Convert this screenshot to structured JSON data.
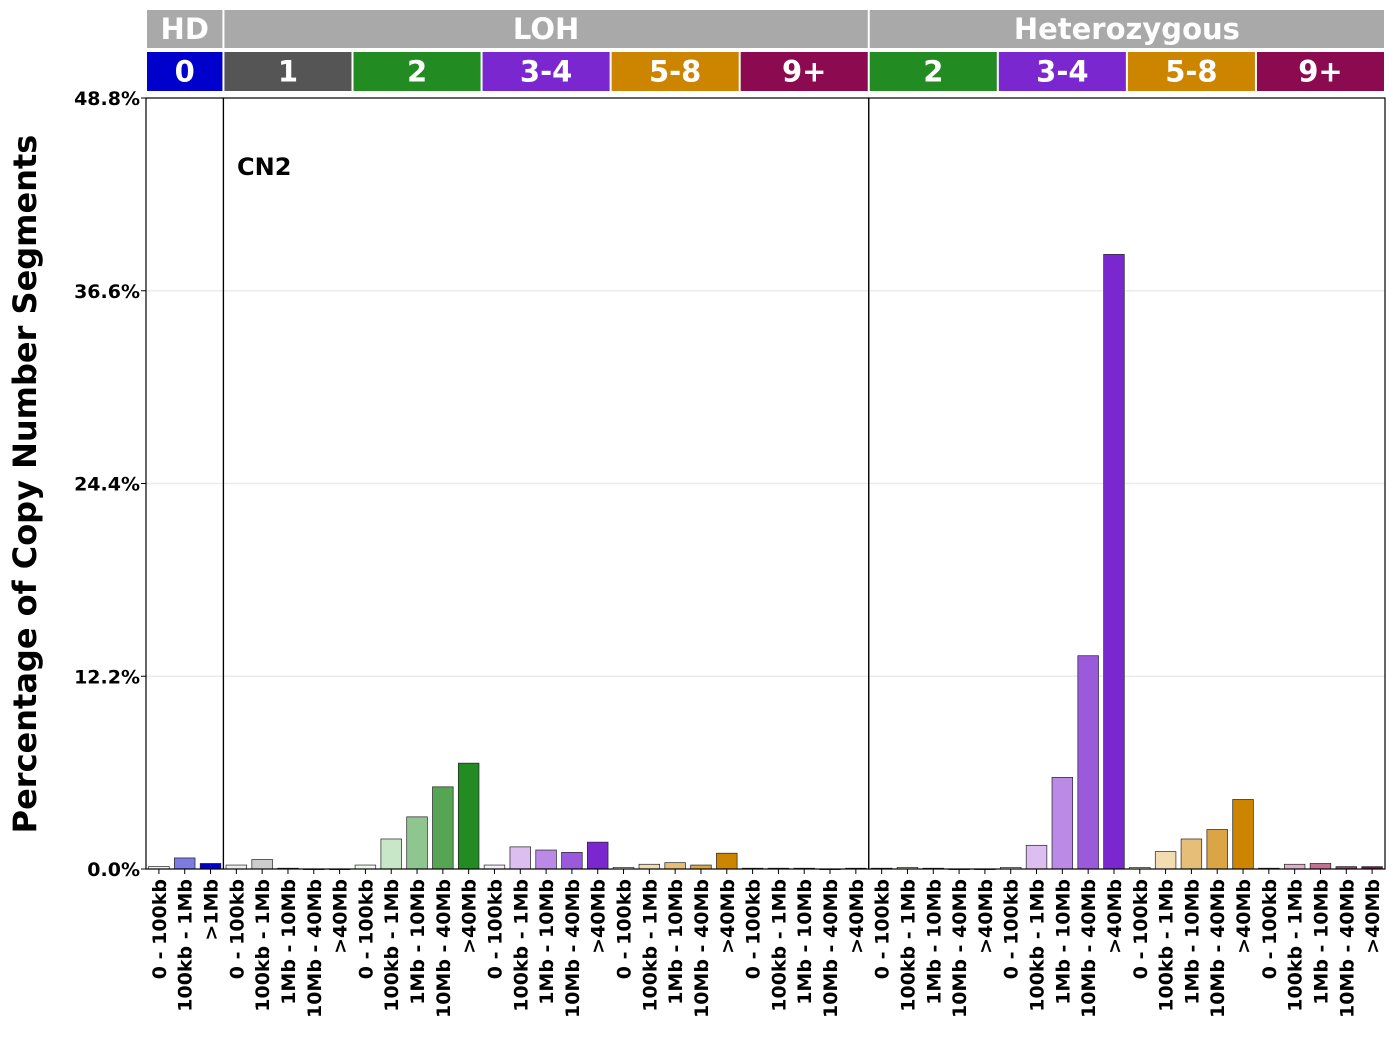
{
  "chart_data": {
    "type": "bar",
    "ylabel": "Percentage of Copy Number Segments",
    "ylim": [
      0,
      48.8
    ],
    "yticks": [
      "0.0%",
      "12.2%",
      "24.4%",
      "36.6%",
      "48.8%"
    ],
    "ytick_values": [
      0,
      12.2,
      24.4,
      36.6,
      48.8
    ],
    "grid": "horizontal",
    "annotation": "CN2",
    "panels": [
      {
        "label": "HD",
        "groups": [
          "0"
        ]
      },
      {
        "label": "LOH",
        "groups": [
          "1",
          "2",
          "3-4",
          "5-8",
          "9+"
        ]
      },
      {
        "label": "Heterozygous",
        "groups": [
          "2",
          "3-4",
          "5-8",
          "9+"
        ]
      }
    ],
    "groups": [
      {
        "panel": 0,
        "label": "0",
        "color": "#0000CD",
        "categories": [
          "0 - 100kb",
          "100kb - 1Mb",
          ">1Mb"
        ],
        "values": [
          0.15,
          0.7,
          0.35
        ],
        "colors": [
          "#F0F0F0",
          "#7B7BE0",
          "#0000CD"
        ]
      },
      {
        "panel": 1,
        "label": "1",
        "color": "#555555",
        "categories": [
          "0 - 100kb",
          "100kb - 1Mb",
          "1Mb - 10Mb",
          "10Mb - 40Mb",
          ">40Mb"
        ],
        "values": [
          0.25,
          0.6,
          0.05,
          0.0,
          0.0
        ],
        "colors": [
          "#EEEEEE",
          "#CCCCCC",
          "#999999",
          "#777777",
          "#555555"
        ]
      },
      {
        "panel": 1,
        "label": "2",
        "color": "#228B22",
        "categories": [
          "0 - 100kb",
          "100kb - 1Mb",
          "1Mb - 10Mb",
          "10Mb - 40Mb",
          ">40Mb"
        ],
        "values": [
          0.25,
          1.9,
          3.3,
          5.2,
          6.7
        ],
        "colors": [
          "#F0F8F0",
          "#C8E6C8",
          "#8FC68F",
          "#55A555",
          "#228B22"
        ]
      },
      {
        "panel": 1,
        "label": "3-4",
        "color": "#7B27D0",
        "categories": [
          "0 - 100kb",
          "100kb - 1Mb",
          "1Mb - 10Mb",
          "10Mb - 40Mb",
          ">40Mb"
        ],
        "values": [
          0.25,
          1.4,
          1.2,
          1.05,
          1.7
        ],
        "colors": [
          "#F5EEFB",
          "#DDBEF0",
          "#BA8AE6",
          "#9A5ADB",
          "#7B27D0"
        ]
      },
      {
        "panel": 1,
        "label": "5-8",
        "color": "#CD8500",
        "categories": [
          "0 - 100kb",
          "100kb - 1Mb",
          "1Mb - 10Mb",
          "10Mb - 40Mb",
          ">40Mb"
        ],
        "values": [
          0.1,
          0.3,
          0.4,
          0.25,
          1.0
        ],
        "colors": [
          "#FBF4E8",
          "#F2DDB0",
          "#E6BE78",
          "#DBA444",
          "#CD8500"
        ]
      },
      {
        "panel": 1,
        "label": "9+",
        "color": "#8B0A50",
        "categories": [
          "0 - 100kb",
          "100kb - 1Mb",
          "1Mb - 10Mb",
          "10Mb - 40Mb",
          ">40Mb"
        ],
        "values": [
          0.05,
          0.05,
          0.05,
          0.0,
          0.05
        ],
        "colors": [
          "#F6E6EE",
          "#E0B0C8",
          "#C07090",
          "#A03A70",
          "#8B0A50"
        ]
      },
      {
        "panel": 2,
        "label": "2",
        "color": "#228B22",
        "categories": [
          "0 - 100kb",
          "100kb - 1Mb",
          "1Mb - 10Mb",
          "10Mb - 40Mb",
          ">40Mb"
        ],
        "values": [
          0.05,
          0.1,
          0.05,
          0.0,
          0.0
        ],
        "colors": [
          "#F0F8F0",
          "#C8E6C8",
          "#8FC68F",
          "#55A555",
          "#228B22"
        ]
      },
      {
        "panel": 2,
        "label": "3-4",
        "color": "#7B27D0",
        "categories": [
          "0 - 100kb",
          "100kb - 1Mb",
          "1Mb - 10Mb",
          "10Mb - 40Mb",
          ">40Mb"
        ],
        "values": [
          0.1,
          1.5,
          5.8,
          13.5,
          38.9
        ],
        "colors": [
          "#F5EEFB",
          "#DDBEF0",
          "#BA8AE6",
          "#9A5ADB",
          "#7B27D0"
        ]
      },
      {
        "panel": 2,
        "label": "5-8",
        "color": "#CD8500",
        "categories": [
          "0 - 100kb",
          "100kb - 1Mb",
          "1Mb - 10Mb",
          "10Mb - 40Mb",
          ">40Mb"
        ],
        "values": [
          0.1,
          1.1,
          1.9,
          2.5,
          4.4
        ],
        "colors": [
          "#FBF4E8",
          "#F2DDB0",
          "#E6BE78",
          "#DBA444",
          "#CD8500"
        ]
      },
      {
        "panel": 2,
        "label": "9+",
        "color": "#8B0A50",
        "categories": [
          "0 - 100kb",
          "100kb - 1Mb",
          "1Mb - 10Mb",
          "10Mb - 40Mb",
          ">40Mb"
        ],
        "values": [
          0.05,
          0.3,
          0.35,
          0.15,
          0.15
        ],
        "colors": [
          "#F6E6EE",
          "#E0B0C8",
          "#C07090",
          "#A03A70",
          "#8B0A50"
        ]
      }
    ]
  },
  "colors": {
    "panel_strip": "#A9A9A9",
    "gridline": "#EBEBEB",
    "axis": "#000000"
  }
}
